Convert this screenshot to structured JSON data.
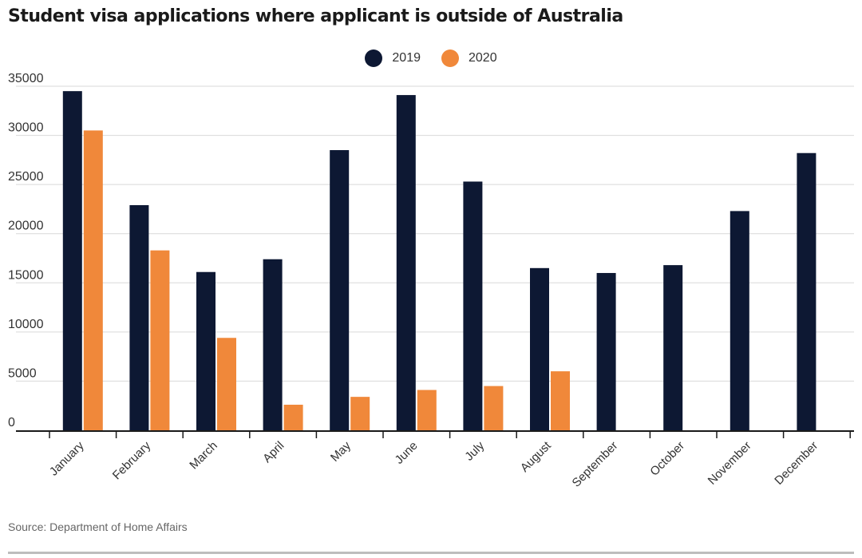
{
  "title": "Student visa applications where applicant is outside of Australia",
  "source": "Source: Department of Home Affairs",
  "colors": {
    "series_2019": "#0d1833",
    "series_2020": "#f0883a",
    "grid": "#d9d9d9",
    "axis": "#1a1a1a"
  },
  "chart_data": {
    "type": "bar",
    "title": "Student visa applications where applicant is outside of Australia",
    "xlabel": "",
    "ylabel": "",
    "ylim": [
      0,
      35000
    ],
    "yticks": [
      0,
      5000,
      10000,
      15000,
      20000,
      25000,
      30000,
      35000
    ],
    "grid": true,
    "legend_position": "top-center",
    "categories": [
      "January",
      "February",
      "March",
      "April",
      "May",
      "June",
      "July",
      "August",
      "September",
      "October",
      "November",
      "December"
    ],
    "series": [
      {
        "name": "2019",
        "values": [
          34500,
          22900,
          16100,
          17400,
          28500,
          34100,
          25300,
          16500,
          16000,
          16800,
          22300,
          28200
        ]
      },
      {
        "name": "2020",
        "values": [
          30500,
          18300,
          9400,
          2600,
          3400,
          4100,
          4500,
          6000,
          null,
          null,
          null,
          null
        ]
      }
    ]
  }
}
